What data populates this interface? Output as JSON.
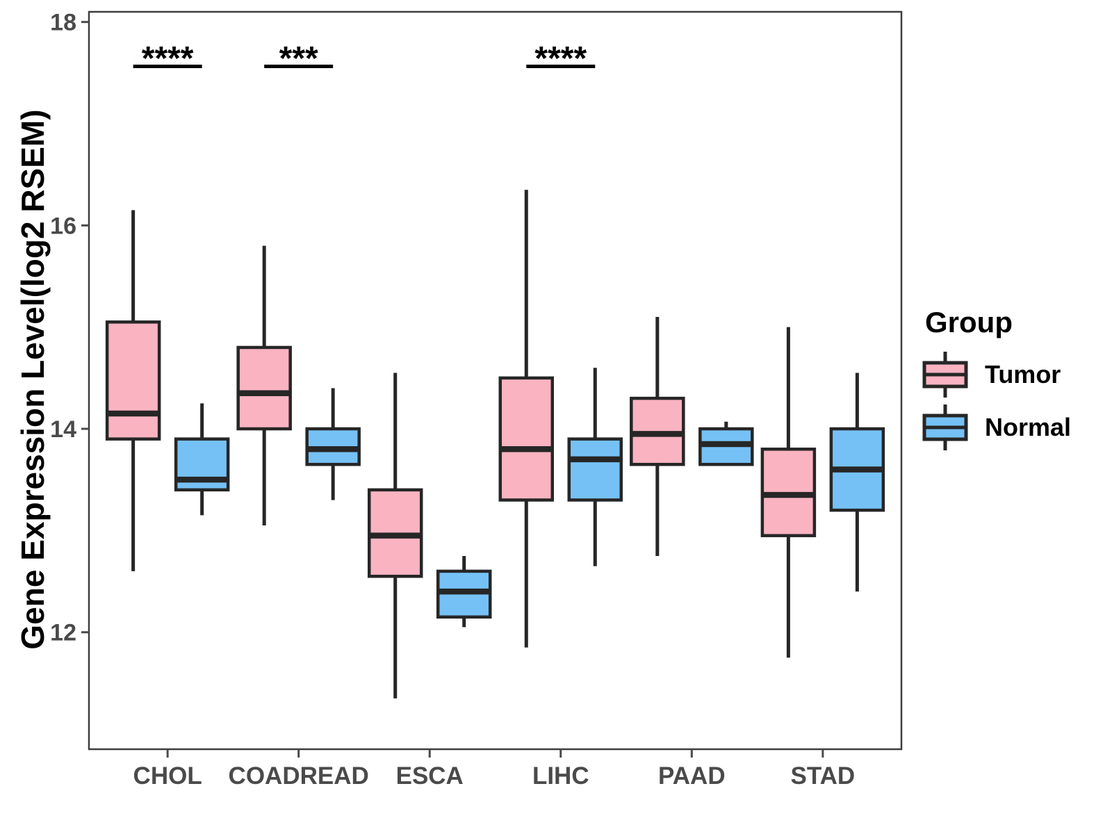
{
  "figure": {
    "background": "#ffffff",
    "y_axis_title": "Gene Expression Level(log2 RSEM)"
  },
  "legend": {
    "title": "Group",
    "items": [
      {
        "label": "Tumor",
        "color": "#FAB3C1"
      },
      {
        "label": "Normal",
        "color": "#75C1F5"
      }
    ]
  },
  "colors": {
    "tumor_fill": "#FAB3C1",
    "normal_fill": "#75C1F5",
    "box_stroke": "#262626",
    "panel_border": "#3d3d3d",
    "axis_text": "#4a4a4a",
    "annotation": "#000000"
  },
  "chart_data": {
    "type": "boxplot",
    "title": "",
    "xlabel": "",
    "ylabel": "Gene Expression Level(log2 RSEM)",
    "ylim": [
      10.85,
      18.1
    ],
    "y_ticks": [
      12,
      14,
      16,
      18
    ],
    "grid": false,
    "legend_position": "right",
    "categories": [
      "CHOL",
      "COADREAD",
      "ESCA",
      "LIHC",
      "PAAD",
      "STAD"
    ],
    "series": [
      {
        "name": "Tumor",
        "color": "#FAB3C1",
        "boxes": [
          {
            "category": "CHOL",
            "min": 12.6,
            "q1": 13.9,
            "median": 14.15,
            "q3": 15.05,
            "max": 16.15
          },
          {
            "category": "COADREAD",
            "min": 13.05,
            "q1": 14.0,
            "median": 14.35,
            "q3": 14.8,
            "max": 15.8
          },
          {
            "category": "ESCA",
            "min": 11.35,
            "q1": 12.55,
            "median": 12.95,
            "q3": 13.4,
            "max": 14.55
          },
          {
            "category": "LIHC",
            "min": 11.85,
            "q1": 13.3,
            "median": 13.8,
            "q3": 14.5,
            "max": 16.35
          },
          {
            "category": "PAAD",
            "min": 12.75,
            "q1": 13.65,
            "median": 13.95,
            "q3": 14.3,
            "max": 15.1
          },
          {
            "category": "STAD",
            "min": 11.75,
            "q1": 12.95,
            "median": 13.35,
            "q3": 13.8,
            "max": 15.0
          }
        ]
      },
      {
        "name": "Normal",
        "color": "#75C1F5",
        "boxes": [
          {
            "category": "CHOL",
            "min": 13.15,
            "q1": 13.4,
            "median": 13.5,
            "q3": 13.9,
            "max": 14.25
          },
          {
            "category": "COADREAD",
            "min": 13.3,
            "q1": 13.65,
            "median": 13.8,
            "q3": 14.0,
            "max": 14.4
          },
          {
            "category": "ESCA",
            "min": 12.05,
            "q1": 12.15,
            "median": 12.4,
            "q3": 12.6,
            "max": 12.75
          },
          {
            "category": "LIHC",
            "min": 12.65,
            "q1": 13.3,
            "median": 13.7,
            "q3": 13.9,
            "max": 14.6
          },
          {
            "category": "PAAD",
            "min": 13.65,
            "q1": 13.65,
            "median": 13.85,
            "q3": 14.0,
            "max": 14.07
          },
          {
            "category": "STAD",
            "min": 12.4,
            "q1": 13.2,
            "median": 13.6,
            "q3": 14.0,
            "max": 14.55
          }
        ]
      }
    ],
    "significance": [
      {
        "category": "CHOL",
        "label": "****"
      },
      {
        "category": "COADREAD",
        "label": "***"
      },
      {
        "category": "LIHC",
        "label": "****"
      }
    ]
  }
}
